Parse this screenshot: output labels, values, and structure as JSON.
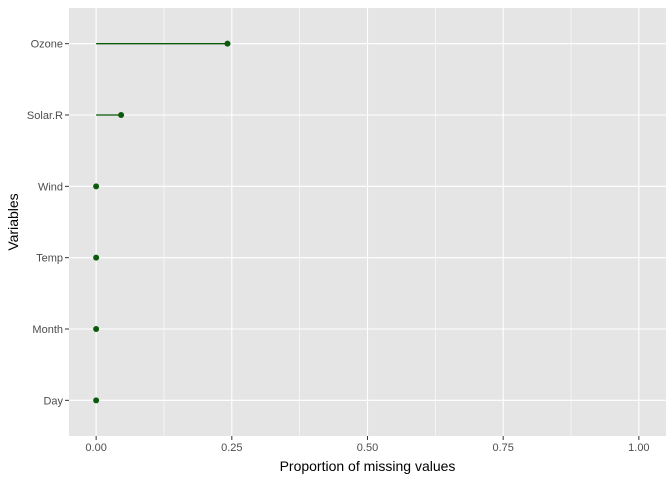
{
  "chart_data": {
    "type": "lollipop",
    "xlabel": "Proportion of missing values",
    "ylabel": "Variables",
    "xlim": [
      -0.05,
      1.05
    ],
    "x_ticks": [
      0.0,
      0.25,
      0.5,
      0.75,
      1.0
    ],
    "x_tick_labels": [
      "0.00",
      "0.25",
      "0.50",
      "0.75",
      "1.00"
    ],
    "categories": [
      "Ozone",
      "Solar.R",
      "Wind",
      "Temp",
      "Month",
      "Day"
    ],
    "values": [
      0.242,
      0.046,
      0.0,
      0.0,
      0.0,
      0.0
    ],
    "colors": {
      "mark": "#0c5a0c",
      "panel": "#e5e5e5",
      "grid": "#ffffff",
      "tick_text": "#4d4d4d",
      "tick_mark": "#333333"
    },
    "grid": true,
    "legend": "none"
  }
}
